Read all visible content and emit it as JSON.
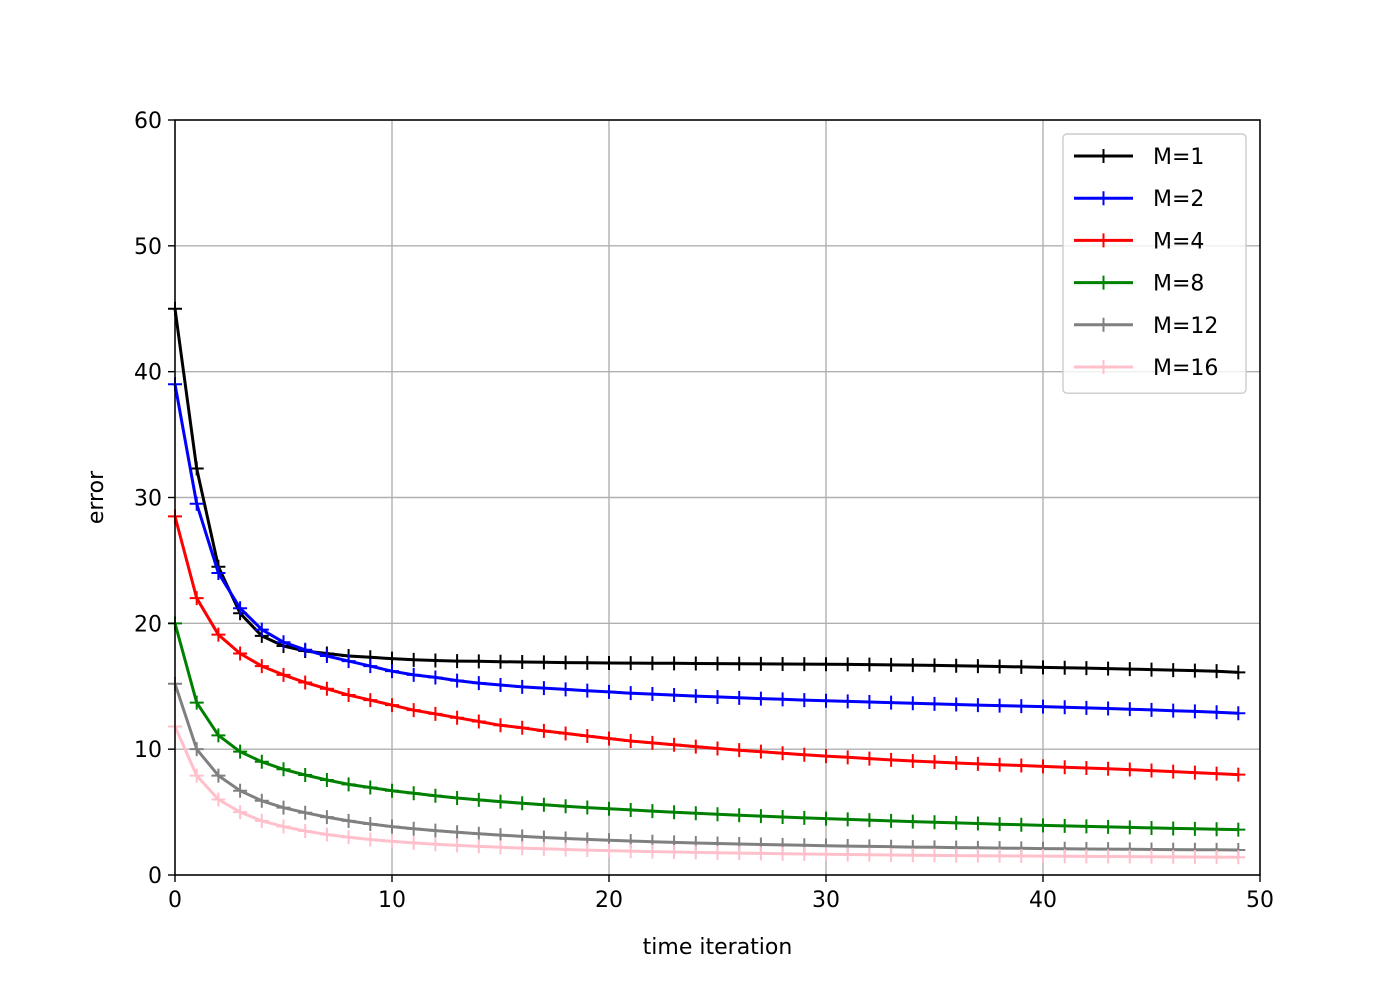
{
  "chart_data": {
    "type": "line",
    "title": "",
    "xlabel": "time iteration",
    "ylabel": "error",
    "xlim": [
      0,
      50
    ],
    "ylim": [
      0,
      60
    ],
    "xticks": [
      "0",
      "10",
      "20",
      "30",
      "40",
      "50"
    ],
    "yticks": [
      "0",
      "10",
      "20",
      "30",
      "40",
      "50",
      "60"
    ],
    "grid": true,
    "legend_position": "top-right",
    "marker": "+",
    "x": [
      0,
      1,
      2,
      3,
      4,
      5,
      6,
      7,
      8,
      9,
      10,
      11,
      12,
      13,
      14,
      15,
      16,
      17,
      18,
      19,
      20,
      21,
      22,
      23,
      24,
      25,
      26,
      27,
      28,
      29,
      30,
      31,
      32,
      33,
      34,
      35,
      36,
      37,
      38,
      39,
      40,
      41,
      42,
      43,
      44,
      45,
      46,
      47,
      48,
      49
    ],
    "series": [
      {
        "name": "M=1",
        "color": "#000000",
        "values": [
          45.0,
          32.3,
          24.5,
          20.8,
          19.0,
          18.2,
          17.8,
          17.6,
          17.4,
          17.3,
          17.2,
          17.1,
          17.05,
          17.0,
          16.98,
          16.95,
          16.93,
          16.9,
          16.88,
          16.86,
          16.85,
          16.84,
          16.83,
          16.82,
          16.81,
          16.8,
          16.79,
          16.78,
          16.77,
          16.76,
          16.75,
          16.74,
          16.72,
          16.7,
          16.68,
          16.66,
          16.63,
          16.6,
          16.57,
          16.54,
          16.5,
          16.47,
          16.44,
          16.4,
          16.36,
          16.32,
          16.28,
          16.24,
          16.2,
          16.1
        ]
      },
      {
        "name": "M=2",
        "color": "#0000ff",
        "values": [
          39.0,
          29.5,
          24.0,
          21.2,
          19.5,
          18.5,
          17.9,
          17.4,
          17.0,
          16.6,
          16.2,
          15.9,
          15.7,
          15.45,
          15.25,
          15.1,
          14.95,
          14.85,
          14.75,
          14.65,
          14.55,
          14.45,
          14.38,
          14.3,
          14.22,
          14.15,
          14.08,
          14.02,
          13.96,
          13.9,
          13.85,
          13.8,
          13.75,
          13.7,
          13.65,
          13.6,
          13.55,
          13.5,
          13.46,
          13.42,
          13.38,
          13.33,
          13.28,
          13.23,
          13.18,
          13.12,
          13.06,
          13.0,
          12.93,
          12.85
        ]
      },
      {
        "name": "M=4",
        "color": "#ff0000",
        "values": [
          28.5,
          22.0,
          19.1,
          17.6,
          16.6,
          15.9,
          15.3,
          14.8,
          14.3,
          13.9,
          13.5,
          13.1,
          12.8,
          12.5,
          12.2,
          11.9,
          11.7,
          11.45,
          11.25,
          11.05,
          10.85,
          10.65,
          10.5,
          10.35,
          10.2,
          10.05,
          9.92,
          9.8,
          9.68,
          9.56,
          9.45,
          9.35,
          9.25,
          9.15,
          9.06,
          8.98,
          8.9,
          8.83,
          8.76,
          8.7,
          8.63,
          8.56,
          8.5,
          8.44,
          8.38,
          8.3,
          8.22,
          8.14,
          8.06,
          7.98
        ]
      },
      {
        "name": "M=8",
        "color": "#008000",
        "values": [
          20.0,
          13.7,
          11.1,
          9.8,
          9.0,
          8.4,
          7.95,
          7.55,
          7.2,
          6.95,
          6.7,
          6.5,
          6.3,
          6.12,
          5.97,
          5.83,
          5.7,
          5.58,
          5.46,
          5.36,
          5.26,
          5.17,
          5.08,
          4.99,
          4.91,
          4.83,
          4.75,
          4.68,
          4.61,
          4.54,
          4.48,
          4.42,
          4.36,
          4.3,
          4.24,
          4.19,
          4.14,
          4.09,
          4.04,
          3.99,
          3.94,
          3.9,
          3.86,
          3.82,
          3.78,
          3.74,
          3.7,
          3.67,
          3.64,
          3.61
        ]
      },
      {
        "name": "M=12",
        "color": "#808080",
        "values": [
          15.2,
          10.0,
          7.9,
          6.7,
          5.9,
          5.35,
          4.95,
          4.6,
          4.3,
          4.05,
          3.85,
          3.68,
          3.53,
          3.4,
          3.28,
          3.17,
          3.07,
          2.98,
          2.9,
          2.83,
          2.76,
          2.7,
          2.64,
          2.59,
          2.54,
          2.5,
          2.46,
          2.42,
          2.39,
          2.36,
          2.33,
          2.3,
          2.27,
          2.25,
          2.22,
          2.2,
          2.18,
          2.16,
          2.14,
          2.12,
          2.1,
          2.09,
          2.07,
          2.06,
          2.04,
          2.03,
          2.02,
          2.01,
          2.0,
          1.99
        ]
      },
      {
        "name": "M=16",
        "color": "#ffc0cb",
        "values": [
          11.8,
          7.9,
          6.0,
          5.0,
          4.3,
          3.85,
          3.5,
          3.22,
          3.0,
          2.82,
          2.67,
          2.55,
          2.44,
          2.35,
          2.27,
          2.2,
          2.14,
          2.08,
          2.03,
          1.98,
          1.94,
          1.9,
          1.86,
          1.83,
          1.8,
          1.77,
          1.74,
          1.72,
          1.69,
          1.67,
          1.65,
          1.63,
          1.61,
          1.59,
          1.57,
          1.56,
          1.54,
          1.53,
          1.52,
          1.51,
          1.5,
          1.49,
          1.48,
          1.47,
          1.46,
          1.45,
          1.44,
          1.43,
          1.42,
          1.41
        ]
      }
    ]
  }
}
